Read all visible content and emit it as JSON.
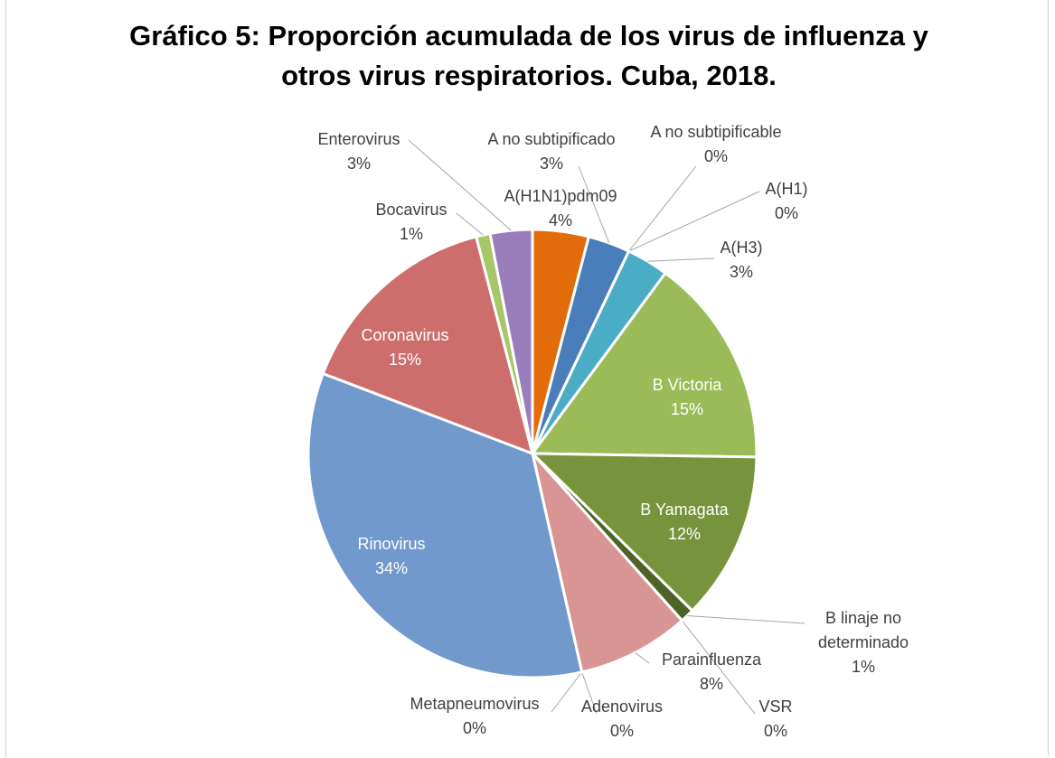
{
  "chart_data": {
    "type": "pie",
    "title": "Gráfico 5: Proporción acumulada de los virus de influenza y otros virus respiratorios. Cuba, 2018.",
    "categories": [
      "A(H1N1)pdm09",
      "A no subtipificado",
      "A no subtipificable",
      "A(H1)",
      "A(H3)",
      "B Victoria",
      "B Yamagata",
      "B linaje no determinado",
      "VSR",
      "Parainfluenza",
      "Adenovirus",
      "Metapneumovirus",
      "Rinovirus",
      "Coronavirus",
      "Bocavirus",
      "Enterovirus"
    ],
    "values": [
      4,
      3,
      0,
      0,
      3,
      15,
      12,
      1,
      0,
      8,
      0,
      0,
      34,
      15,
      1,
      3
    ],
    "value_labels": [
      "4%",
      "3%",
      "0%",
      "0%",
      "3%",
      "15%",
      "12%",
      "1%",
      "0%",
      "8%",
      "0%",
      "0%",
      "34%",
      "15%",
      "1%",
      "3%"
    ],
    "colors": [
      "#e36c0a",
      "#4a7ebb",
      "#3a6fb0",
      "#4bacc6",
      "#4bacc6",
      "#9bbb59",
      "#77933c",
      "#4f6228",
      "#c0504d",
      "#d99594",
      "#f2c2b2",
      "#8eaadb",
      "#7199cc",
      "#cd6e6c",
      "#a7c66a",
      "#9a7ebb"
    ]
  }
}
